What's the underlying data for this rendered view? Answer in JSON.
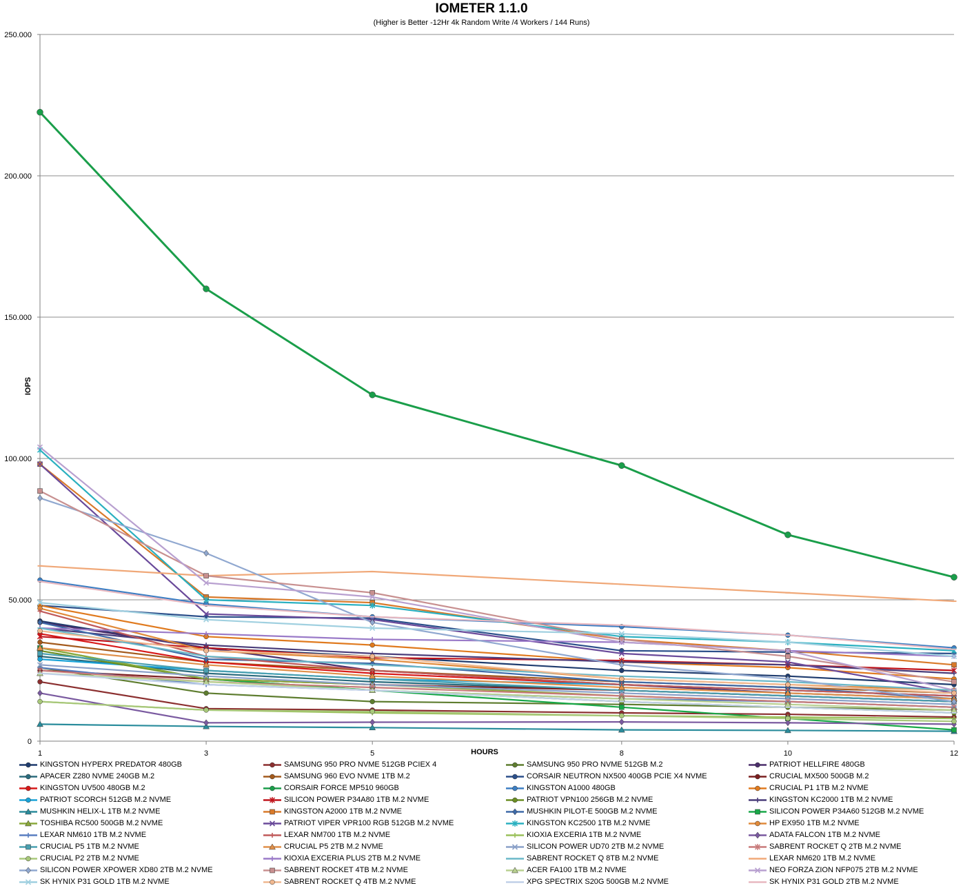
{
  "chart_data": {
    "type": "line",
    "title": "IOMETER 1.1.0",
    "subtitle": "(Higher is Better -12Hr 4k Random Write /4 Workers / 144 Runs)",
    "xlabel": "HOURS",
    "ylabel": "IOPS",
    "x": [
      1,
      3,
      5,
      8,
      10,
      12
    ],
    "x_tick_labels": [
      "1",
      "3",
      "5",
      "8",
      "10",
      "12"
    ],
    "ylim": [
      0,
      250000
    ],
    "y_tick_labels": [
      "0",
      "50.000",
      "100.000",
      "150.000",
      "200.000",
      "250.000"
    ],
    "y_ticks": [
      0,
      50000,
      100000,
      150000,
      200000,
      250000
    ],
    "grid": "horizontal",
    "legend_position": "bottom",
    "series": [
      {
        "name": "KINGSTON HYPERX PREDATOR 480GB",
        "color": "#1f3c6e",
        "marker": "circle",
        "values": [
          42500,
          33000,
          30000,
          25000,
          23000,
          20000
        ]
      },
      {
        "name": "SAMSUNG 950 PRO NVME 512GB PCIEX 4",
        "color": "#8b2f2f",
        "marker": "circle",
        "values": [
          21000,
          11500,
          11000,
          10000,
          9500,
          8500
        ]
      },
      {
        "name": "SAMSUNG 950 PRO NVME 512GB M.2",
        "color": "#5e7d2f",
        "marker": "circle",
        "values": [
          26000,
          17000,
          14000,
          13000,
          12000,
          11000
        ]
      },
      {
        "name": "PATRIOT HELLFIRE 480GB",
        "color": "#4b2e6b",
        "marker": "circle",
        "values": [
          42000,
          33000,
          25000,
          20000,
          17000,
          15000
        ]
      },
      {
        "name": "APACER Z280 NVME 240GB M.2",
        "color": "#2a6b7d",
        "marker": "circle",
        "values": [
          30000,
          24000,
          21000,
          18000,
          16000,
          14000
        ]
      },
      {
        "name": "SAMSUNG 960 EVO NVME 1TB M.2",
        "color": "#a35a1c",
        "marker": "circle",
        "values": [
          35000,
          28000,
          25000,
          21000,
          19000,
          17000
        ]
      },
      {
        "name": "CORSAIR NEUTRON NX500 400GB PCIE X4 NVME",
        "color": "#2b4f8a",
        "marker": "circle",
        "values": [
          48000,
          44000,
          43500,
          32000,
          31500,
          31000
        ]
      },
      {
        "name": "CRUCIAL MX500 500GB M.2",
        "color": "#7a1f1f",
        "marker": "circle",
        "values": [
          25000,
          22000,
          20000,
          18000,
          16000,
          14000
        ]
      },
      {
        "name": "KINGSTON UV500 480GB M.2",
        "color": "#d81818",
        "marker": "circle",
        "values": [
          38000,
          28000,
          24000,
          20000,
          18000,
          16000
        ]
      },
      {
        "name": "CORSAIR FORCE MP510 960GB",
        "color": "#1a9e4a",
        "marker": "circle",
        "values": [
          222500,
          160000,
          122500,
          97500,
          73000,
          58000
        ]
      },
      {
        "name": "KINGSTON A1000 480GB",
        "color": "#3c7fc4",
        "marker": "circle",
        "values": [
          57000,
          48500,
          44000,
          40500,
          37500,
          33000
        ]
      },
      {
        "name": "CRUCIAL P1 1TB M.2 NVME",
        "color": "#e07a1e",
        "marker": "circle",
        "values": [
          48000,
          37000,
          34000,
          28000,
          26000,
          22000
        ]
      },
      {
        "name": "PATRIOT SCORCH 512GB M.2 NVME",
        "color": "#1aa3d8",
        "marker": "circle",
        "values": [
          29000,
          25000,
          22000,
          20000,
          18000,
          16000
        ]
      },
      {
        "name": "SILICON POWER P34A80 1TB M.2 NVME",
        "color": "#c0141c",
        "marker": "asterisk",
        "values": [
          37000,
          33000,
          29500,
          28500,
          27000,
          25000
        ]
      },
      {
        "name": "PATRIOT VPN100 256GB M.2 NVME",
        "color": "#6b8e23",
        "marker": "circle",
        "values": [
          32000,
          22000,
          18000,
          14000,
          12000,
          10000
        ]
      },
      {
        "name": "KINGSTON KC2000 1TB M.2 NVME",
        "color": "#4a3d7a",
        "marker": "plus",
        "values": [
          40000,
          34000,
          31000,
          28000,
          27000,
          24000
        ]
      },
      {
        "name": "MUSHKIN HELIX-L 1TB M.2 NVME",
        "color": "#2a8c9c",
        "marker": "triangle",
        "values": [
          6000,
          5200,
          4800,
          4000,
          3800,
          3500
        ]
      },
      {
        "name": "KINGSTON A2000 1TB M.2 NVME",
        "color": "#d97a2a",
        "marker": "square",
        "values": [
          98000,
          51000,
          49000,
          36000,
          32000,
          27000
        ]
      },
      {
        "name": "MUSHKIN PILOT-E 500GB M.2 NVME",
        "color": "#3e6aa8",
        "marker": "diamond",
        "values": [
          42000,
          29000,
          27500,
          21000,
          19000,
          15000
        ]
      },
      {
        "name": "SILICON POWER P34A60 512GB M.2 NVME",
        "color": "#18a848",
        "marker": "square",
        "values": [
          33000,
          22000,
          18000,
          12000,
          8000,
          4000
        ]
      },
      {
        "name": "TOSHIBA RC500 500GB M.2 NVME",
        "color": "#8aa83a",
        "marker": "triangle",
        "values": [
          33000,
          22000,
          20000,
          16000,
          14000,
          12000
        ]
      },
      {
        "name": "PATRIOT VIPER VPR100 RGB 512GB M.2 NVME",
        "color": "#6a4a9a",
        "marker": "x",
        "values": [
          98000,
          45000,
          43000,
          31000,
          28000,
          17000
        ]
      },
      {
        "name": "KINGSTON KC2500 1TB M.2 NVME",
        "color": "#2ab0c0",
        "marker": "asterisk",
        "values": [
          103000,
          50000,
          48000,
          37000,
          35000,
          32000
        ]
      },
      {
        "name": "HP EX950 1TB M.2 NVME",
        "color": "#e08a3a",
        "marker": "circle",
        "values": [
          47000,
          32000,
          29000,
          22000,
          20000,
          18000
        ]
      },
      {
        "name": "LEXAR NM610 1TB M.2 NVME",
        "color": "#5a7ec0",
        "marker": "plus",
        "values": [
          26000,
          20000,
          18000,
          15000,
          14000,
          12000
        ]
      },
      {
        "name": "LEXAR NM700 1TB M.2 NVME",
        "color": "#c05a5a",
        "marker": "plus",
        "values": [
          46000,
          30000,
          25000,
          20000,
          18000,
          16000
        ]
      },
      {
        "name": "KIOXIA EXCERIA 1TB M.2 NVME",
        "color": "#9ac05a",
        "marker": "plus",
        "values": [
          14000,
          11000,
          10000,
          9000,
          8500,
          8000
        ]
      },
      {
        "name": "ADATA FALCON 1TB M.2 NVME",
        "color": "#7a5aa0",
        "marker": "diamond",
        "values": [
          17000,
          6500,
          6700,
          6800,
          6500,
          6000
        ]
      },
      {
        "name": "CRUCIAL P5 1TB M.2 NVME",
        "color": "#4aa0b0",
        "marker": "square",
        "values": [
          31000,
          25000,
          22000,
          18000,
          16000,
          14000
        ]
      },
      {
        "name": "CRUCIAL P5 2TB M.2 NVME",
        "color": "#e0904a",
        "marker": "triangle",
        "values": [
          33000,
          27000,
          23000,
          19000,
          17000,
          15000
        ]
      },
      {
        "name": "SILICON POWER UD70 2TB M.2 NVME",
        "color": "#8aa0c8",
        "marker": "x",
        "values": [
          27000,
          23000,
          20000,
          17000,
          15000,
          13000
        ]
      },
      {
        "name": "SABRENT ROCKET Q 2TB M.2 NVME",
        "color": "#c87a7a",
        "marker": "asterisk",
        "values": [
          25000,
          21000,
          19000,
          16000,
          14000,
          12000
        ]
      },
      {
        "name": "CRUCIAL P2 2TB M.2 NVME",
        "color": "#a8c87a",
        "marker": "circle",
        "values": [
          14000,
          11000,
          10500,
          9000,
          8000,
          7000
        ]
      },
      {
        "name": "KIOXIA EXCERIA PLUS 2TB M.2 NVME",
        "color": "#9a7ac8",
        "marker": "plus",
        "values": [
          40000,
          38000,
          36000,
          35000,
          32000,
          30000
        ]
      },
      {
        "name": "SABRENT ROCKET Q 8TB M.2 NVME",
        "color": "#6ab8c8",
        "marker": "minus",
        "values": [
          40000,
          30000,
          27000,
          23000,
          21000,
          18000
        ]
      },
      {
        "name": "LEXAR NM620 1TB M.2 NVME",
        "color": "#f0a878",
        "marker": "minus",
        "values": [
          62000,
          58500,
          60000,
          55500,
          52500,
          49500
        ]
      },
      {
        "name": "SILICON POWER XPOWER XD80 2TB M.2 NVME",
        "color": "#90a8d0",
        "marker": "diamond",
        "values": [
          86000,
          66500,
          42000,
          27000,
          22000,
          14000
        ]
      },
      {
        "name": "SABRENT ROCKET 4TB M.2 NVME",
        "color": "#c89090",
        "marker": "square",
        "values": [
          88500,
          58500,
          52500,
          36000,
          30000,
          21000
        ]
      },
      {
        "name": "ACER FA100 1TB M.2 NVME",
        "color": "#b8d090",
        "marker": "triangle",
        "values": [
          24000,
          21000,
          18000,
          15000,
          13000,
          11000
        ]
      },
      {
        "name": "NEO FORZA ZION NFP075 2TB M.2 NVME",
        "color": "#b8a0d0",
        "marker": "x",
        "values": [
          104000,
          56000,
          51000,
          35000,
          32000,
          18000
        ]
      },
      {
        "name": "SK HYNIX P31 GOLD 1TB M.2 NVME",
        "color": "#a0d0e0",
        "marker": "x",
        "values": [
          49000,
          43000,
          40000,
          38000,
          35000,
          30000
        ]
      },
      {
        "name": "SABRENT ROCKET Q 4TB M.2 NVME",
        "color": "#f0b890",
        "marker": "circle",
        "values": [
          39000,
          32000,
          30000,
          22000,
          20000,
          17000
        ]
      },
      {
        "name": "XPG SPECTRIX S20G 500GB M.2 NVME",
        "color": "#c0d0e8",
        "marker": "minus",
        "values": [
          24000,
          20000,
          18000,
          14000,
          12000,
          10000
        ]
      },
      {
        "name": "SK HYNIX P31 GOLD 2TB M.2 NVME",
        "color": "#e8b8c0",
        "marker": "minus",
        "values": [
          56500,
          48000,
          44000,
          41000,
          37500,
          32500
        ]
      }
    ]
  }
}
